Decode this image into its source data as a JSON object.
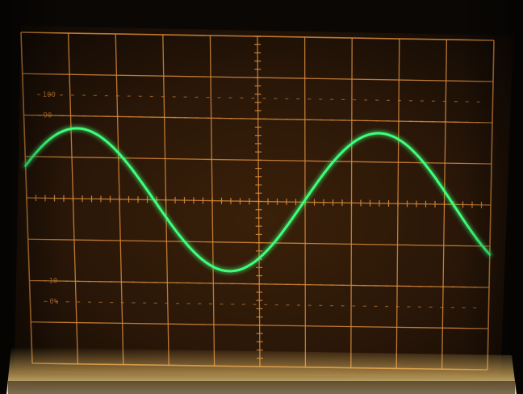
{
  "scene": {
    "subject": "oscilloscope-screen",
    "trace_color": "#3dff7a",
    "graticule_color": "#d88a3a",
    "backdrop_color": "#0a0704",
    "screen_color": "#2a1708",
    "bezel_glow_color": "#ffd27a",
    "trace": {
      "waveform": "sine",
      "cycles_visible": 1.55,
      "amplitude_divisions": 3.4,
      "phase_start": 0.05
    },
    "graticule": {
      "divisions_x": 10,
      "divisions_y": 8
    },
    "scale_labels": [
      "100",
      "90",
      "10",
      "0%"
    ]
  }
}
